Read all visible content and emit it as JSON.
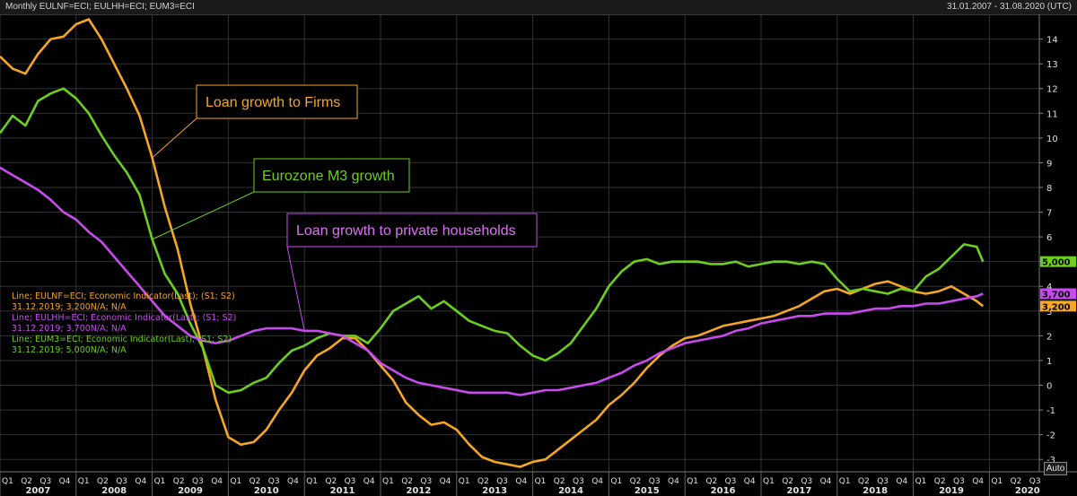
{
  "header": {
    "title": "Monthly EULNF=ECI; EULHH=ECI; EUM3=ECI",
    "date_range": "31.01.2007 - 31.08.2020 (UTC)"
  },
  "auto_label": "Auto",
  "annotations": {
    "firms": "Loan growth to Firms",
    "m3": "Eurozone M3 growth",
    "households": "Loan growth to private households"
  },
  "legend": {
    "firms_line1": "Line; EULNF=ECI; Economic Indicator(Last); (S1; S2)",
    "firms_line2": "31.12.2019; 3,200N/A; N/A",
    "households_line1": "Line; EULHH=ECI; Economic Indicator(Last); (S1; S2)",
    "households_line2": "31.12.2019; 3,700N/A; N/A",
    "m3_line1": "Line; EUM3=ECI; Economic Indicator(Last); (S1; S2)",
    "m3_line2": "31.12.2019; 5,000N/A; N/A"
  },
  "colors": {
    "firms": "#f5a623",
    "m3": "#6ccf1e",
    "households": "#c94bf0",
    "background": "#000000",
    "grid": "#333333"
  },
  "chart_data": {
    "type": "line",
    "ylim": [
      -3.5,
      15
    ],
    "y_ticks": [
      "-3",
      "-2",
      "-1",
      "0",
      "1",
      "2",
      "3",
      "4",
      "5",
      "6",
      "7",
      "8",
      "9",
      "10",
      "11",
      "12",
      "13",
      "14"
    ],
    "x_quarter_labels": [
      "Q1",
      "Q2",
      "Q3",
      "Q4"
    ],
    "x_years": [
      "2007",
      "2008",
      "2009",
      "2010",
      "2011",
      "2012",
      "2013",
      "2014",
      "2015",
      "2016",
      "2017",
      "2018",
      "2019",
      "2020"
    ],
    "grid": true,
    "last_values": {
      "m3": "5,000",
      "households": "3,700",
      "firms": "3,200"
    },
    "series": [
      {
        "key": "firms",
        "name": "Loan growth to Firms",
        "points": [
          [
            "2007-01",
            13.3
          ],
          [
            "2007-03",
            12.8
          ],
          [
            "2007-05",
            12.6
          ],
          [
            "2007-07",
            13.4
          ],
          [
            "2007-09",
            14.0
          ],
          [
            "2007-11",
            14.1
          ],
          [
            "2008-01",
            14.6
          ],
          [
            "2008-03",
            14.8
          ],
          [
            "2008-05",
            14.0
          ],
          [
            "2008-07",
            13.0
          ],
          [
            "2008-09",
            12.0
          ],
          [
            "2008-11",
            10.9
          ],
          [
            "2009-01",
            9.2
          ],
          [
            "2009-03",
            7.2
          ],
          [
            "2009-05",
            5.5
          ],
          [
            "2009-07",
            3.3
          ],
          [
            "2009-09",
            1.5
          ],
          [
            "2009-11",
            -0.6
          ],
          [
            "2010-01",
            -2.1
          ],
          [
            "2010-03",
            -2.4
          ],
          [
            "2010-05",
            -2.3
          ],
          [
            "2010-07",
            -1.8
          ],
          [
            "2010-09",
            -1.0
          ],
          [
            "2010-11",
            -0.3
          ],
          [
            "2011-01",
            0.6
          ],
          [
            "2011-03",
            1.2
          ],
          [
            "2011-05",
            1.5
          ],
          [
            "2011-07",
            1.9
          ],
          [
            "2011-09",
            1.9
          ],
          [
            "2011-11",
            1.4
          ],
          [
            "2012-01",
            0.8
          ],
          [
            "2012-03",
            0.2
          ],
          [
            "2012-05",
            -0.7
          ],
          [
            "2012-07",
            -1.2
          ],
          [
            "2012-09",
            -1.6
          ],
          [
            "2012-11",
            -1.5
          ],
          [
            "2013-01",
            -1.8
          ],
          [
            "2013-03",
            -2.4
          ],
          [
            "2013-05",
            -2.9
          ],
          [
            "2013-07",
            -3.1
          ],
          [
            "2013-09",
            -3.2
          ],
          [
            "2013-11",
            -3.3
          ],
          [
            "2014-01",
            -3.1
          ],
          [
            "2014-03",
            -3.0
          ],
          [
            "2014-05",
            -2.6
          ],
          [
            "2014-07",
            -2.2
          ],
          [
            "2014-09",
            -1.8
          ],
          [
            "2014-11",
            -1.4
          ],
          [
            "2015-01",
            -0.8
          ],
          [
            "2015-03",
            -0.4
          ],
          [
            "2015-05",
            0.1
          ],
          [
            "2015-07",
            0.7
          ],
          [
            "2015-09",
            1.2
          ],
          [
            "2015-11",
            1.6
          ],
          [
            "2016-01",
            1.9
          ],
          [
            "2016-03",
            2.0
          ],
          [
            "2016-05",
            2.2
          ],
          [
            "2016-07",
            2.4
          ],
          [
            "2016-09",
            2.5
          ],
          [
            "2016-11",
            2.6
          ],
          [
            "2017-01",
            2.7
          ],
          [
            "2017-03",
            2.8
          ],
          [
            "2017-05",
            3.0
          ],
          [
            "2017-07",
            3.2
          ],
          [
            "2017-09",
            3.5
          ],
          [
            "2017-11",
            3.8
          ],
          [
            "2018-01",
            3.9
          ],
          [
            "2018-03",
            3.7
          ],
          [
            "2018-05",
            3.9
          ],
          [
            "2018-07",
            4.1
          ],
          [
            "2018-09",
            4.2
          ],
          [
            "2018-11",
            4.0
          ],
          [
            "2019-01",
            3.8
          ],
          [
            "2019-03",
            3.7
          ],
          [
            "2019-05",
            3.8
          ],
          [
            "2019-07",
            4.0
          ],
          [
            "2019-09",
            3.7
          ],
          [
            "2019-11",
            3.4
          ],
          [
            "2019-12",
            3.2
          ]
        ]
      },
      {
        "key": "m3",
        "name": "Eurozone M3 growth",
        "points": [
          [
            "2007-01",
            10.2
          ],
          [
            "2007-03",
            10.9
          ],
          [
            "2007-05",
            10.5
          ],
          [
            "2007-07",
            11.5
          ],
          [
            "2007-09",
            11.8
          ],
          [
            "2007-11",
            12.0
          ],
          [
            "2008-01",
            11.6
          ],
          [
            "2008-03",
            11.0
          ],
          [
            "2008-05",
            10.1
          ],
          [
            "2008-07",
            9.3
          ],
          [
            "2008-09",
            8.6
          ],
          [
            "2008-11",
            7.7
          ],
          [
            "2009-01",
            5.9
          ],
          [
            "2009-03",
            4.5
          ],
          [
            "2009-05",
            3.7
          ],
          [
            "2009-07",
            2.5
          ],
          [
            "2009-09",
            1.5
          ],
          [
            "2009-11",
            0.0
          ],
          [
            "2010-01",
            -0.3
          ],
          [
            "2010-03",
            -0.2
          ],
          [
            "2010-05",
            0.1
          ],
          [
            "2010-07",
            0.3
          ],
          [
            "2010-09",
            0.9
          ],
          [
            "2010-11",
            1.4
          ],
          [
            "2011-01",
            1.6
          ],
          [
            "2011-03",
            1.9
          ],
          [
            "2011-05",
            2.1
          ],
          [
            "2011-07",
            2.0
          ],
          [
            "2011-09",
            2.0
          ],
          [
            "2011-11",
            1.7
          ],
          [
            "2012-01",
            2.3
          ],
          [
            "2012-03",
            3.0
          ],
          [
            "2012-05",
            3.3
          ],
          [
            "2012-07",
            3.6
          ],
          [
            "2012-09",
            3.1
          ],
          [
            "2012-11",
            3.4
          ],
          [
            "2013-01",
            3.0
          ],
          [
            "2013-03",
            2.6
          ],
          [
            "2013-05",
            2.4
          ],
          [
            "2013-07",
            2.2
          ],
          [
            "2013-09",
            2.1
          ],
          [
            "2013-11",
            1.6
          ],
          [
            "2014-01",
            1.2
          ],
          [
            "2014-03",
            1.0
          ],
          [
            "2014-05",
            1.3
          ],
          [
            "2014-07",
            1.7
          ],
          [
            "2014-09",
            2.4
          ],
          [
            "2014-11",
            3.1
          ],
          [
            "2015-01",
            4.0
          ],
          [
            "2015-03",
            4.6
          ],
          [
            "2015-05",
            5.0
          ],
          [
            "2015-07",
            5.1
          ],
          [
            "2015-09",
            4.9
          ],
          [
            "2015-11",
            5.0
          ],
          [
            "2016-01",
            5.0
          ],
          [
            "2016-03",
            5.0
          ],
          [
            "2016-05",
            4.9
          ],
          [
            "2016-07",
            4.9
          ],
          [
            "2016-09",
            5.0
          ],
          [
            "2016-11",
            4.8
          ],
          [
            "2017-01",
            4.9
          ],
          [
            "2017-03",
            5.0
          ],
          [
            "2017-05",
            5.0
          ],
          [
            "2017-07",
            4.9
          ],
          [
            "2017-09",
            5.0
          ],
          [
            "2017-11",
            4.9
          ],
          [
            "2018-01",
            4.3
          ],
          [
            "2018-03",
            3.8
          ],
          [
            "2018-05",
            3.9
          ],
          [
            "2018-07",
            3.8
          ],
          [
            "2018-09",
            3.7
          ],
          [
            "2018-11",
            3.9
          ],
          [
            "2019-01",
            3.8
          ],
          [
            "2019-03",
            4.4
          ],
          [
            "2019-05",
            4.7
          ],
          [
            "2019-07",
            5.2
          ],
          [
            "2019-09",
            5.7
          ],
          [
            "2019-11",
            5.6
          ],
          [
            "2019-12",
            5.0
          ]
        ]
      },
      {
        "key": "households",
        "name": "Loan growth to private households",
        "points": [
          [
            "2007-01",
            8.8
          ],
          [
            "2007-03",
            8.5
          ],
          [
            "2007-05",
            8.2
          ],
          [
            "2007-07",
            7.9
          ],
          [
            "2007-09",
            7.5
          ],
          [
            "2007-11",
            7.0
          ],
          [
            "2008-01",
            6.7
          ],
          [
            "2008-03",
            6.2
          ],
          [
            "2008-05",
            5.8
          ],
          [
            "2008-07",
            5.2
          ],
          [
            "2008-09",
            4.6
          ],
          [
            "2008-11",
            4.0
          ],
          [
            "2009-01",
            3.4
          ],
          [
            "2009-03",
            2.8
          ],
          [
            "2009-05",
            2.4
          ],
          [
            "2009-07",
            2.0
          ],
          [
            "2009-09",
            1.8
          ],
          [
            "2009-11",
            1.7
          ],
          [
            "2010-01",
            1.8
          ],
          [
            "2010-03",
            2.0
          ],
          [
            "2010-05",
            2.2
          ],
          [
            "2010-07",
            2.3
          ],
          [
            "2010-09",
            2.3
          ],
          [
            "2010-11",
            2.3
          ],
          [
            "2011-01",
            2.2
          ],
          [
            "2011-03",
            2.2
          ],
          [
            "2011-05",
            2.1
          ],
          [
            "2011-07",
            2.0
          ],
          [
            "2011-09",
            1.7
          ],
          [
            "2011-11",
            1.4
          ],
          [
            "2012-01",
            0.9
          ],
          [
            "2012-03",
            0.6
          ],
          [
            "2012-05",
            0.3
          ],
          [
            "2012-07",
            0.1
          ],
          [
            "2012-09",
            0.0
          ],
          [
            "2012-11",
            -0.1
          ],
          [
            "2013-01",
            -0.2
          ],
          [
            "2013-03",
            -0.3
          ],
          [
            "2013-05",
            -0.3
          ],
          [
            "2013-07",
            -0.3
          ],
          [
            "2013-09",
            -0.3
          ],
          [
            "2013-11",
            -0.4
          ],
          [
            "2014-01",
            -0.3
          ],
          [
            "2014-03",
            -0.2
          ],
          [
            "2014-05",
            -0.2
          ],
          [
            "2014-07",
            -0.1
          ],
          [
            "2014-09",
            0.0
          ],
          [
            "2014-11",
            0.1
          ],
          [
            "2015-01",
            0.3
          ],
          [
            "2015-03",
            0.5
          ],
          [
            "2015-05",
            0.8
          ],
          [
            "2015-07",
            1.0
          ],
          [
            "2015-09",
            1.3
          ],
          [
            "2015-11",
            1.5
          ],
          [
            "2016-01",
            1.7
          ],
          [
            "2016-03",
            1.8
          ],
          [
            "2016-05",
            1.9
          ],
          [
            "2016-07",
            2.0
          ],
          [
            "2016-09",
            2.2
          ],
          [
            "2016-11",
            2.3
          ],
          [
            "2017-01",
            2.5
          ],
          [
            "2017-03",
            2.6
          ],
          [
            "2017-05",
            2.7
          ],
          [
            "2017-07",
            2.8
          ],
          [
            "2017-09",
            2.8
          ],
          [
            "2017-11",
            2.9
          ],
          [
            "2018-01",
            2.9
          ],
          [
            "2018-03",
            2.9
          ],
          [
            "2018-05",
            3.0
          ],
          [
            "2018-07",
            3.1
          ],
          [
            "2018-09",
            3.1
          ],
          [
            "2018-11",
            3.2
          ],
          [
            "2019-01",
            3.2
          ],
          [
            "2019-03",
            3.3
          ],
          [
            "2019-05",
            3.3
          ],
          [
            "2019-07",
            3.4
          ],
          [
            "2019-09",
            3.5
          ],
          [
            "2019-11",
            3.6
          ],
          [
            "2019-12",
            3.7
          ]
        ]
      }
    ]
  }
}
